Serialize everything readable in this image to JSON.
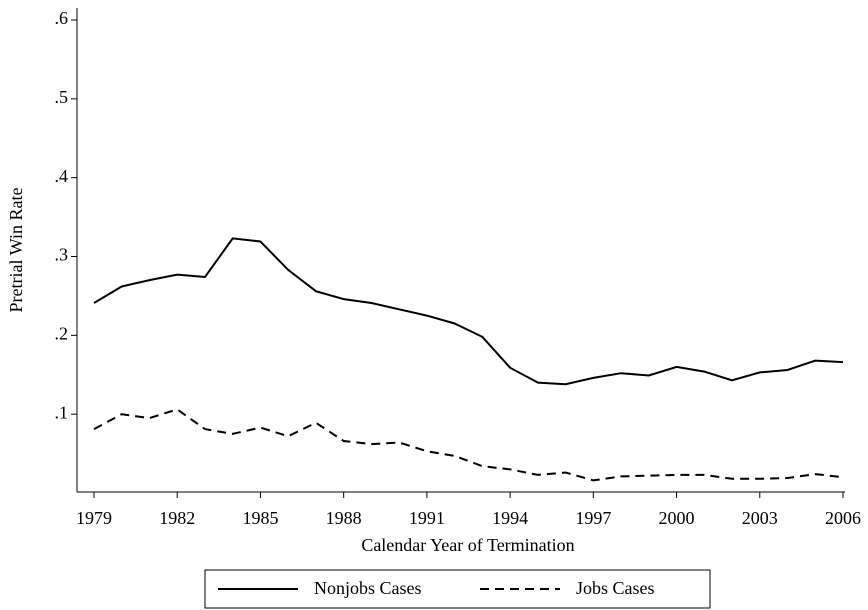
{
  "chart_data": {
    "type": "line",
    "x_label": "Calendar Year of Termination",
    "y_label": "Pretrial Win Rate",
    "x": [
      1979,
      1980,
      1981,
      1982,
      1983,
      1984,
      1985,
      1986,
      1987,
      1988,
      1989,
      1990,
      1991,
      1992,
      1993,
      1994,
      1995,
      1996,
      1997,
      1998,
      1999,
      2000,
      2001,
      2002,
      2003,
      2004,
      2005,
      2006
    ],
    "series": [
      {
        "name": "Nonjobs Cases",
        "color": "#000000",
        "style": "solid",
        "values": [
          0.241,
          0.262,
          0.27,
          0.277,
          0.274,
          0.323,
          0.319,
          0.283,
          0.256,
          0.246,
          0.241,
          0.233,
          0.225,
          0.215,
          0.198,
          0.159,
          0.14,
          0.138,
          0.146,
          0.152,
          0.149,
          0.16,
          0.154,
          0.143,
          0.153,
          0.156,
          0.168,
          0.166
        ]
      },
      {
        "name": "Jobs Cases",
        "color": "#000000",
        "style": "dashed",
        "values": [
          0.081,
          0.1,
          0.095,
          0.106,
          0.081,
          0.075,
          0.083,
          0.072,
          0.089,
          0.066,
          0.062,
          0.064,
          0.053,
          0.047,
          0.034,
          0.03,
          0.023,
          0.026,
          0.016,
          0.021,
          0.022,
          0.023,
          0.023,
          0.018,
          0.018,
          0.019,
          0.024,
          0.02
        ]
      }
    ],
    "xlim": [
      1979,
      2006
    ],
    "xticks": [
      1979,
      1982,
      1985,
      1988,
      1991,
      1994,
      1997,
      2000,
      2003,
      2006
    ],
    "ylim": [
      0,
      0.6
    ],
    "yticks": [
      {
        "value": 0.1,
        "label": ".1"
      },
      {
        "value": 0.2,
        "label": ".2"
      },
      {
        "value": 0.3,
        "label": ".3"
      },
      {
        "value": 0.4,
        "label": ".4"
      },
      {
        "value": 0.5,
        "label": ".5"
      },
      {
        "value": 0.6,
        "label": ".6"
      }
    ],
    "grid": false,
    "legend_position": "bottom"
  }
}
